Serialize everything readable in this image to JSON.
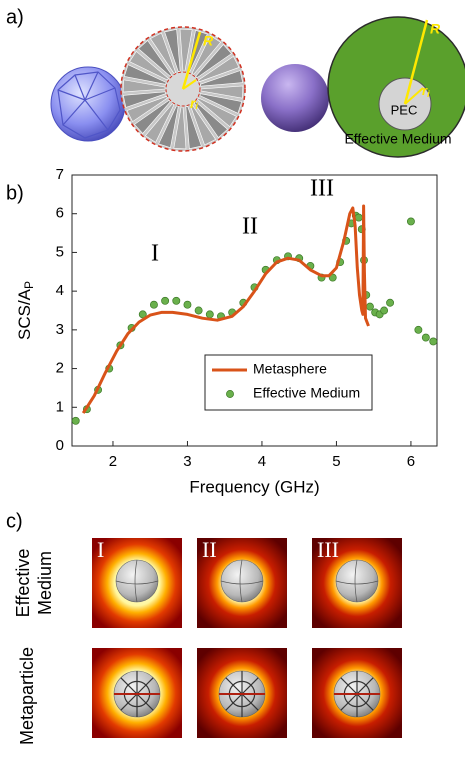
{
  "panel_a": {
    "label": "a)",
    "left_R": "R",
    "left_r": "r",
    "left_r_sub": "i",
    "right_R": "R",
    "right_r": "r",
    "right_r_sub": "i",
    "core": "PEC",
    "medium": "Effective Medium"
  },
  "panel_b_label": "b)",
  "chart_data": {
    "type": "line",
    "xlabel": "Frequency (GHz)",
    "ylabel": "SCS/A",
    "ylabel_sub": "P",
    "xlim": [
      1.45,
      6.35
    ],
    "xticks": [
      2,
      3,
      4,
      5,
      6
    ],
    "ylim": [
      0,
      7
    ],
    "yticks": [
      0,
      1,
      2,
      3,
      4,
      5,
      6,
      7
    ],
    "annotations": [
      "I",
      "II",
      "III"
    ],
    "legend": "lower right",
    "series": [
      {
        "name": "Metasphere",
        "color": "#d95319",
        "mode": "line",
        "x": [
          1.6,
          1.75,
          1.9,
          2.05,
          2.2,
          2.35,
          2.5,
          2.65,
          2.8,
          3.0,
          3.2,
          3.4,
          3.6,
          3.75,
          3.9,
          4.05,
          4.2,
          4.35,
          4.5,
          4.65,
          4.8,
          4.9,
          5.0,
          5.1,
          5.18,
          5.22,
          5.25,
          5.28,
          5.31,
          5.34,
          5.355,
          5.365,
          5.375,
          5.39,
          5.43
        ],
        "values": [
          0.85,
          1.3,
          1.9,
          2.45,
          2.9,
          3.2,
          3.38,
          3.45,
          3.45,
          3.4,
          3.3,
          3.25,
          3.35,
          3.6,
          4.0,
          4.45,
          4.75,
          4.85,
          4.8,
          4.55,
          4.4,
          4.4,
          4.6,
          5.3,
          6.0,
          6.15,
          5.7,
          4.6,
          3.9,
          3.5,
          3.4,
          6.2,
          4.5,
          3.3,
          3.1
        ]
      },
      {
        "name": "Effective Medium",
        "color": "#6ab04c",
        "mode": "markers",
        "x": [
          1.5,
          1.65,
          1.8,
          1.95,
          2.1,
          2.25,
          2.4,
          2.55,
          2.7,
          2.85,
          3.0,
          3.15,
          3.3,
          3.45,
          3.6,
          3.75,
          3.9,
          4.05,
          4.2,
          4.35,
          4.5,
          4.65,
          4.8,
          4.95,
          5.05,
          5.13,
          5.2,
          5.26,
          5.3,
          5.34,
          5.37,
          5.4,
          5.45,
          5.52,
          5.58,
          5.64,
          5.72,
          6.0,
          6.1,
          6.2,
          6.3
        ],
        "values": [
          0.65,
          0.95,
          1.45,
          2.0,
          2.6,
          3.05,
          3.4,
          3.65,
          3.75,
          3.75,
          3.65,
          3.5,
          3.4,
          3.35,
          3.45,
          3.7,
          4.1,
          4.55,
          4.8,
          4.9,
          4.85,
          4.65,
          4.35,
          4.35,
          4.75,
          5.3,
          5.75,
          5.95,
          5.9,
          5.6,
          4.8,
          3.9,
          3.6,
          3.45,
          3.4,
          3.5,
          3.7,
          5.8,
          3.0,
          2.8,
          2.7
        ]
      }
    ]
  },
  "panel_c": {
    "label": "c)",
    "row_1": [
      "Effective",
      "Medium"
    ],
    "row_2": "Metaparticle",
    "columns": [
      "I",
      "II",
      "III"
    ]
  }
}
